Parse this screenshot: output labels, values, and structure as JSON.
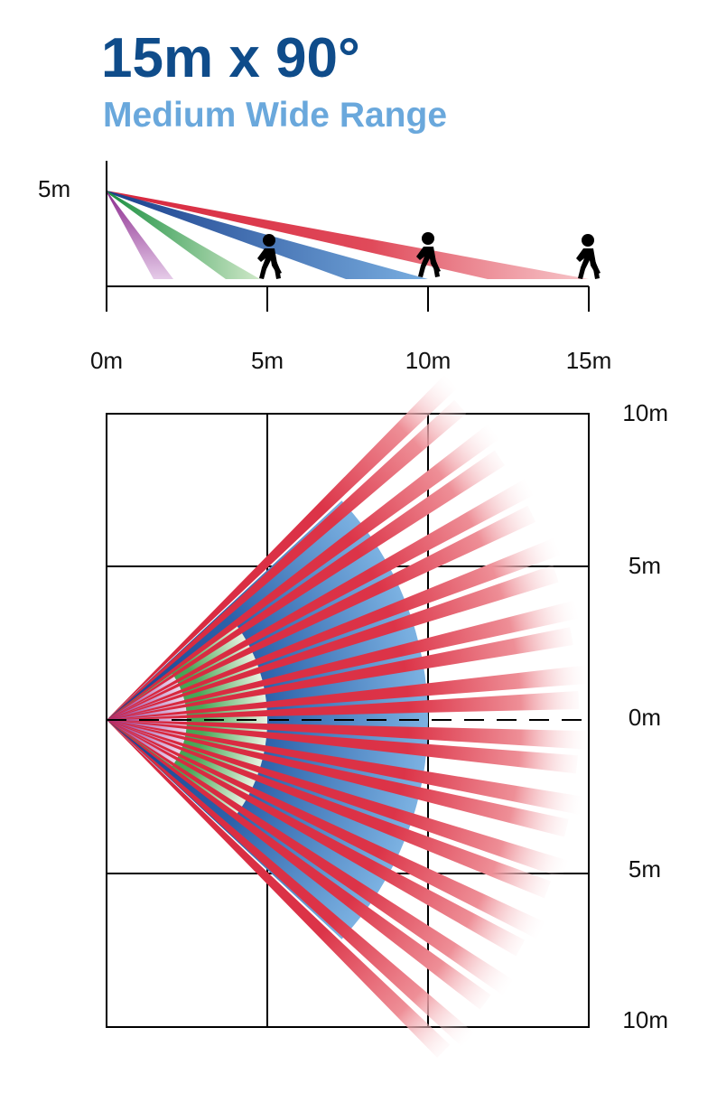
{
  "header": {
    "title": "15m x 90°",
    "subtitle": "Medium Wide Range"
  },
  "side_view": {
    "height_label": "5m",
    "x_tick_labels": [
      "0m",
      "5m",
      "10m",
      "15m"
    ],
    "beams": [
      {
        "zone": "purple",
        "color": "#8b2a8e",
        "reach_m": 2
      },
      {
        "zone": "green",
        "color": "#1f9a48",
        "reach_m": 4.5
      },
      {
        "zone": "blue",
        "color": "#1e4f9c",
        "reach_m": 10
      },
      {
        "zone": "red",
        "color": "#d7263d",
        "reach_m": 15
      }
    ],
    "person_icons": [
      "walking-person-icon",
      "walking-person-icon",
      "walking-person-icon"
    ]
  },
  "top_view": {
    "right_labels": [
      "10m",
      "5m",
      "0m",
      "5m",
      "10m"
    ],
    "coverage_angle_deg": 90,
    "range_m": 15,
    "colors": {
      "red": "#d7263d",
      "blue": "#1e4f9c",
      "green": "#1f9a48",
      "purple": "#8b2a8e"
    }
  }
}
